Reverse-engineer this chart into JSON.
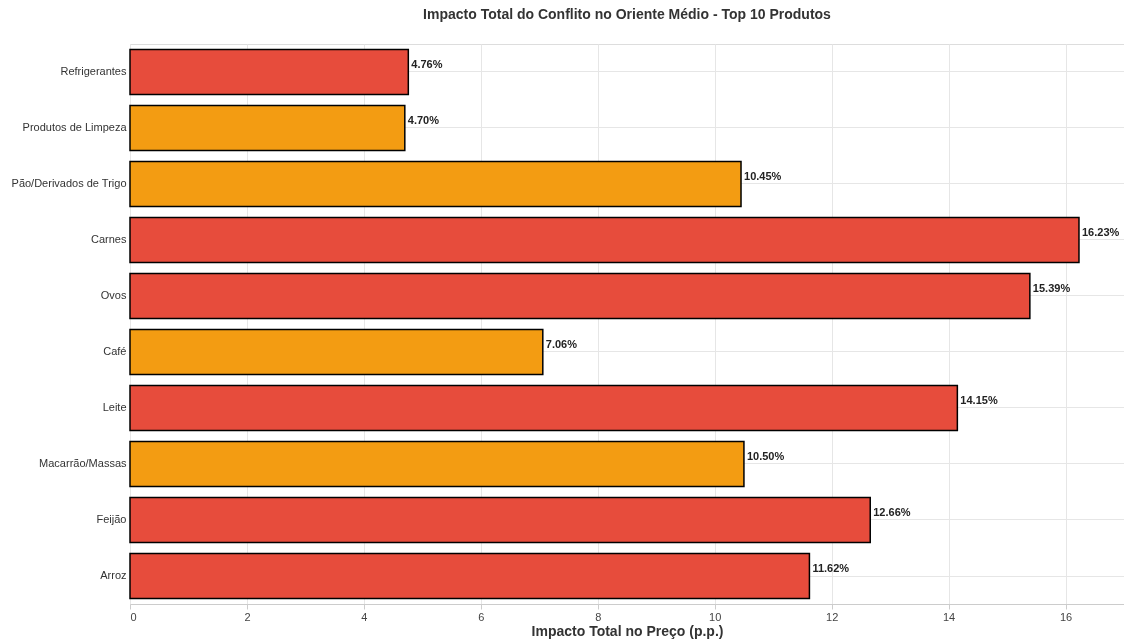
{
  "chart_data": {
    "type": "bar",
    "orientation": "horizontal",
    "title": "Impacto Total do Conflito no Oriente Médio - Top 10 Produtos",
    "xlabel": "Impacto Total no Preço (p.p.)",
    "categories": [
      "Refrigerantes",
      "Produtos de Limpeza",
      "Pão/Derivados de Trigo",
      "Carnes",
      "Ovos",
      "Café",
      "Leite",
      "Macarrão/Massas",
      "Feijão",
      "Arroz"
    ],
    "values": [
      4.76,
      4.7,
      10.45,
      16.23,
      15.39,
      7.06,
      14.15,
      10.5,
      12.66,
      11.62
    ],
    "colors": [
      "#e74c3c",
      "#f39c12",
      "#f39c12",
      "#e74c3c",
      "#e74c3c",
      "#f39c12",
      "#e74c3c",
      "#f39c12",
      "#e74c3c",
      "#e74c3c"
    ],
    "value_labels": [
      "4.76%",
      "4.70%",
      "10.45%",
      "16.23%",
      "15.39%",
      "7.06%",
      "14.15%",
      "10.50%",
      "12.66%",
      "11.62%"
    ],
    "xlim": [
      0,
      17
    ],
    "xticks": [
      0,
      2,
      4,
      6,
      8,
      10,
      12,
      14,
      16
    ],
    "grid": true
  }
}
